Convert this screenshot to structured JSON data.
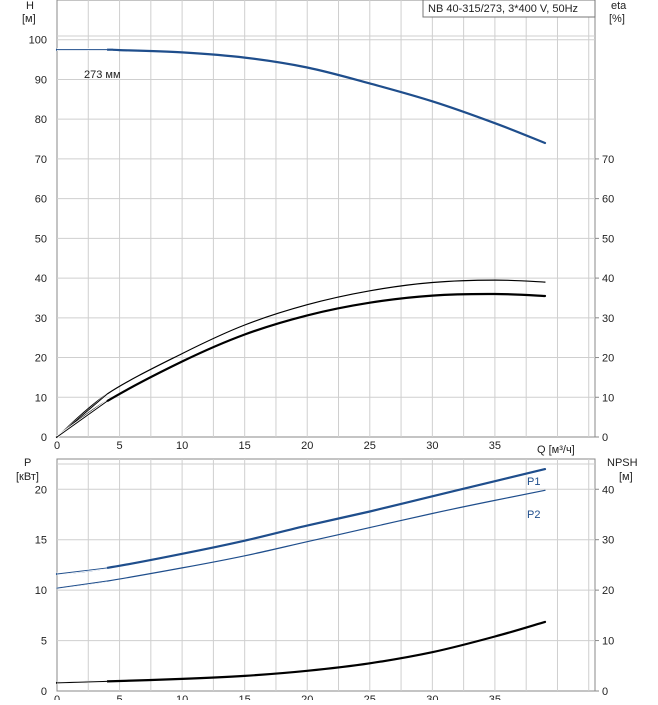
{
  "legend_box_text": "NB 40-315/273, 3*400 V, 50Hz",
  "upper_left_unit": {
    "name": "H",
    "unit": "[м]"
  },
  "upper_right_unit": {
    "name": "eta",
    "unit": "[%]"
  },
  "lower_left_unit": {
    "name": "P",
    "unit": "[кВт]"
  },
  "lower_right_unit": {
    "name": "NPSH",
    "unit": "[м]"
  },
  "x_axis_label": "Q [м³/ч]",
  "impeller_label": "273 мм",
  "colors": {
    "head": "#1f4e8c",
    "power": "#1f4e8c",
    "efficiency": "#000000",
    "npsh": "#000000",
    "grid": "#cfcfcf"
  },
  "chart_data": [
    {
      "type": "line",
      "panel": "upper",
      "x_ticks": [
        0,
        5,
        10,
        15,
        20,
        25,
        30,
        35
      ],
      "xlim": [
        0,
        43
      ],
      "y_left_ticks": [
        0,
        10,
        20,
        30,
        40,
        50,
        60,
        70,
        80,
        90,
        100
      ],
      "ylim_left": [
        0,
        110
      ],
      "y_right_ticks": [
        0,
        10,
        20,
        30,
        40,
        50,
        60,
        70
      ],
      "ylim_right": [
        0,
        110
      ],
      "series": [
        {
          "name": "273 мм",
          "axis": "left",
          "color": "#1f4e8c",
          "width": 2.2,
          "points": [
            [
              0,
              97.5
            ],
            [
              4,
              97.5
            ],
            [
              5,
              97.4
            ],
            [
              10,
              96.8
            ],
            [
              15,
              95.5
            ],
            [
              20,
              93
            ],
            [
              25,
              89
            ],
            [
              30,
              84.5
            ],
            [
              35,
              79
            ],
            [
              39,
              74
            ]
          ]
        },
        {
          "axis": "right",
          "color": "#000000",
          "width": 1.2,
          "points": [
            [
              0,
              0
            ],
            [
              4,
              10.8
            ],
            [
              10,
              21
            ],
            [
              15,
              28.2
            ],
            [
              20,
              33.3
            ],
            [
              25,
              36.8
            ],
            [
              30,
              38.9
            ],
            [
              35,
              39.5
            ],
            [
              39,
              39
            ]
          ]
        },
        {
          "axis": "right",
          "color": "#000000",
          "width": 2.2,
          "points": [
            [
              0,
              0
            ],
            [
              4,
              9
            ],
            [
              10,
              19
            ],
            [
              15,
              25.8
            ],
            [
              20,
              30.6
            ],
            [
              25,
              33.8
            ],
            [
              30,
              35.6
            ],
            [
              35,
              36
            ],
            [
              39,
              35.5
            ]
          ]
        }
      ]
    },
    {
      "type": "line",
      "panel": "lower",
      "x_ticks": [
        0,
        5,
        10,
        15,
        20,
        25,
        30,
        35
      ],
      "xlim": [
        0,
        43
      ],
      "y_left_ticks": [
        0,
        5,
        10,
        15,
        20
      ],
      "ylim_left": [
        0,
        23
      ],
      "y_right_ticks": [
        0,
        10,
        20,
        30,
        40
      ],
      "ylim_right": [
        0,
        46
      ],
      "series": [
        {
          "name": "P1",
          "axis": "left",
          "color": "#1f4e8c",
          "width": 2.2,
          "points": [
            [
              0,
              11.6
            ],
            [
              4,
              12.2
            ],
            [
              10,
              13.6
            ],
            [
              15,
              14.9
            ],
            [
              20,
              16.4
            ],
            [
              25,
              17.8
            ],
            [
              30,
              19.3
            ],
            [
              35,
              20.8
            ],
            [
              39,
              22.0
            ]
          ]
        },
        {
          "name": "P2",
          "axis": "left",
          "color": "#1f4e8c",
          "width": 1.2,
          "points": [
            [
              0,
              10.2
            ],
            [
              4,
              10.9
            ],
            [
              10,
              12.2
            ],
            [
              15,
              13.4
            ],
            [
              20,
              14.8
            ],
            [
              25,
              16.2
            ],
            [
              30,
              17.6
            ],
            [
              35,
              18.9
            ],
            [
              39,
              19.9
            ]
          ]
        },
        {
          "axis": "right",
          "color": "#000000",
          "width": 2.2,
          "points": [
            [
              0,
              1.6
            ],
            [
              4,
              1.9
            ],
            [
              10,
              2.4
            ],
            [
              15,
              3.0
            ],
            [
              20,
              4.0
            ],
            [
              25,
              5.5
            ],
            [
              30,
              7.7
            ],
            [
              35,
              10.8
            ],
            [
              39,
              13.7
            ]
          ]
        }
      ]
    }
  ]
}
